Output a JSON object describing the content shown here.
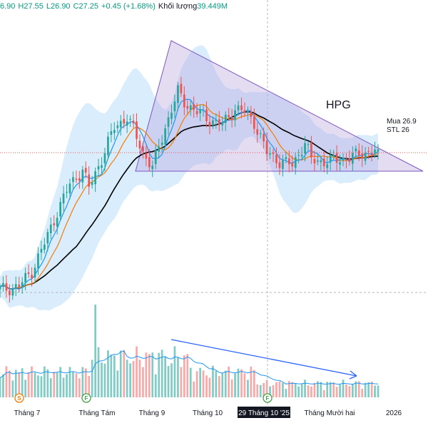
{
  "header": {
    "open_label": "6.90",
    "high_label": "H27.55",
    "low_label": "L26.90",
    "close_label": "C27.25",
    "change_label": "+0.45 (+1.68%)",
    "volume_label": "Khối lượng",
    "volume_value": "39.449M"
  },
  "chart_data": {
    "type": "candlestick",
    "ticker": "HPG",
    "annotations": [
      "Mua 26.9",
      "STL 26"
    ],
    "x_tick_labels": [
      "Tháng 7",
      "Tháng Tám",
      "Tháng 9",
      "Tháng 10",
      "29 Tháng 10 '25",
      "Tháng Mười hai",
      "2026"
    ],
    "event_markers": [
      "S",
      "F",
      "F"
    ],
    "current_price": 27.25,
    "pattern": "descending triangle",
    "colors": {
      "up": "#26a69a",
      "down": "#ef5350",
      "ema_fast": "#2196f3",
      "ema_mid": "#f57c00",
      "ema_slow": "#000000",
      "band_fill": "#bbdefb",
      "triangle_fill": "#b39ddb",
      "trend_arrow": "#2962ff"
    }
  }
}
